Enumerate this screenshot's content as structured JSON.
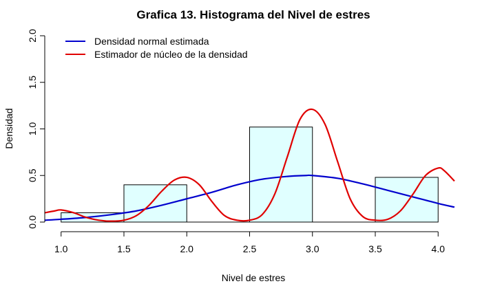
{
  "chart_data": {
    "type": "histogram",
    "title": "Grafica 13. Histograma del Nivel de estres",
    "xlabel": "Nivel de estres",
    "ylabel": "Densidad",
    "xlim": [
      0.87,
      4.13
    ],
    "ylim": [
      0,
      2.0
    ],
    "x_ticks": [
      "1.0",
      "1.5",
      "2.0",
      "2.5",
      "3.0",
      "3.5",
      "4.0"
    ],
    "x_tick_values": [
      1.0,
      1.5,
      2.0,
      2.5,
      3.0,
      3.5,
      4.0
    ],
    "y_ticks": [
      "0.0",
      "0.5",
      "1.0",
      "1.5",
      "2.0"
    ],
    "y_tick_values": [
      0.0,
      0.5,
      1.0,
      1.5,
      2.0
    ],
    "bars": [
      {
        "x0": 1.0,
        "x1": 1.5,
        "density": 0.1
      },
      {
        "x0": 1.5,
        "x1": 2.0,
        "density": 0.4
      },
      {
        "x0": 2.0,
        "x1": 2.5,
        "density": 0.0
      },
      {
        "x0": 2.5,
        "x1": 3.0,
        "density": 1.02
      },
      {
        "x0": 3.0,
        "x1": 3.5,
        "density": 0.0
      },
      {
        "x0": 3.5,
        "x1": 4.0,
        "density": 0.48
      }
    ],
    "bar_fill": "#e0ffff",
    "bar_stroke": "#000000",
    "series": [
      {
        "name": "Densidad normal estimada",
        "color": "#0000cd",
        "x": [
          0.87,
          1.0,
          1.2,
          1.4,
          1.6,
          1.8,
          2.0,
          2.2,
          2.4,
          2.6,
          2.8,
          2.95,
          3.0,
          3.2,
          3.4,
          3.6,
          3.8,
          4.0,
          4.13
        ],
        "y": [
          0.02,
          0.03,
          0.05,
          0.08,
          0.12,
          0.18,
          0.25,
          0.32,
          0.4,
          0.46,
          0.49,
          0.5,
          0.5,
          0.47,
          0.41,
          0.34,
          0.27,
          0.2,
          0.16
        ]
      },
      {
        "name": "Estimador de núcleo de la densidad",
        "color": "#e00000",
        "x": [
          0.87,
          0.95,
          1.0,
          1.1,
          1.2,
          1.3,
          1.4,
          1.5,
          1.6,
          1.7,
          1.8,
          1.9,
          2.0,
          2.1,
          2.2,
          2.3,
          2.4,
          2.5,
          2.6,
          2.7,
          2.8,
          2.9,
          3.0,
          3.1,
          3.2,
          3.3,
          3.4,
          3.5,
          3.6,
          3.7,
          3.8,
          3.9,
          4.0,
          4.05,
          4.13
        ],
        "y": [
          0.1,
          0.12,
          0.13,
          0.1,
          0.05,
          0.02,
          0.01,
          0.02,
          0.07,
          0.18,
          0.33,
          0.45,
          0.48,
          0.4,
          0.22,
          0.07,
          0.02,
          0.02,
          0.08,
          0.3,
          0.7,
          1.1,
          1.21,
          1.05,
          0.65,
          0.25,
          0.06,
          0.02,
          0.03,
          0.12,
          0.3,
          0.5,
          0.58,
          0.55,
          0.44
        ]
      }
    ],
    "legend_position": "top-left"
  }
}
